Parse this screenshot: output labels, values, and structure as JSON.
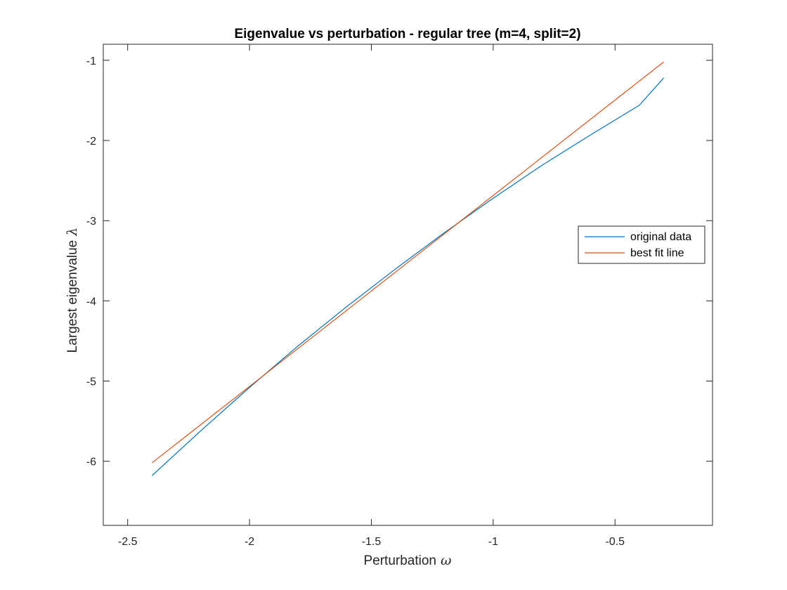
{
  "chart_data": {
    "type": "line",
    "title": "Eigenvalue vs perturbation - regular tree (m=4, split=2)",
    "xlabel": "Perturbation",
    "xlabel_symbol": "ω",
    "ylabel": "Largest eigenvalue",
    "ylabel_symbol": "λ",
    "xlim": [
      -2.6,
      -0.1
    ],
    "ylim": [
      -6.8,
      -0.8
    ],
    "x_ticks": [
      -2.5,
      -2,
      -1.5,
      -1,
      -0.5
    ],
    "x_tick_labels": [
      "-2.5",
      "-2",
      "-1.5",
      "-1",
      "-0.5"
    ],
    "y_ticks": [
      -6,
      -5,
      -4,
      -3,
      -2,
      -1
    ],
    "y_tick_labels": [
      "-6",
      "-5",
      "-4",
      "-3",
      "-2",
      "-1"
    ],
    "grid": false,
    "legend_position": "right",
    "series": [
      {
        "name": "original data",
        "color": "#0072bd",
        "x": [
          -2.4,
          -2.2,
          -2.0,
          -1.8,
          -1.6,
          -1.4,
          -1.2,
          -1.0,
          -0.8,
          -0.6,
          -0.4,
          -0.3
        ],
        "y": [
          -6.18,
          -5.62,
          -5.08,
          -4.56,
          -4.07,
          -3.6,
          -3.15,
          -2.72,
          -2.31,
          -1.93,
          -1.56,
          -1.22
        ]
      },
      {
        "name": "best fit line",
        "color": "#d95319",
        "x": [
          -2.4,
          -0.3
        ],
        "y": [
          -6.02,
          -1.02
        ]
      }
    ]
  }
}
